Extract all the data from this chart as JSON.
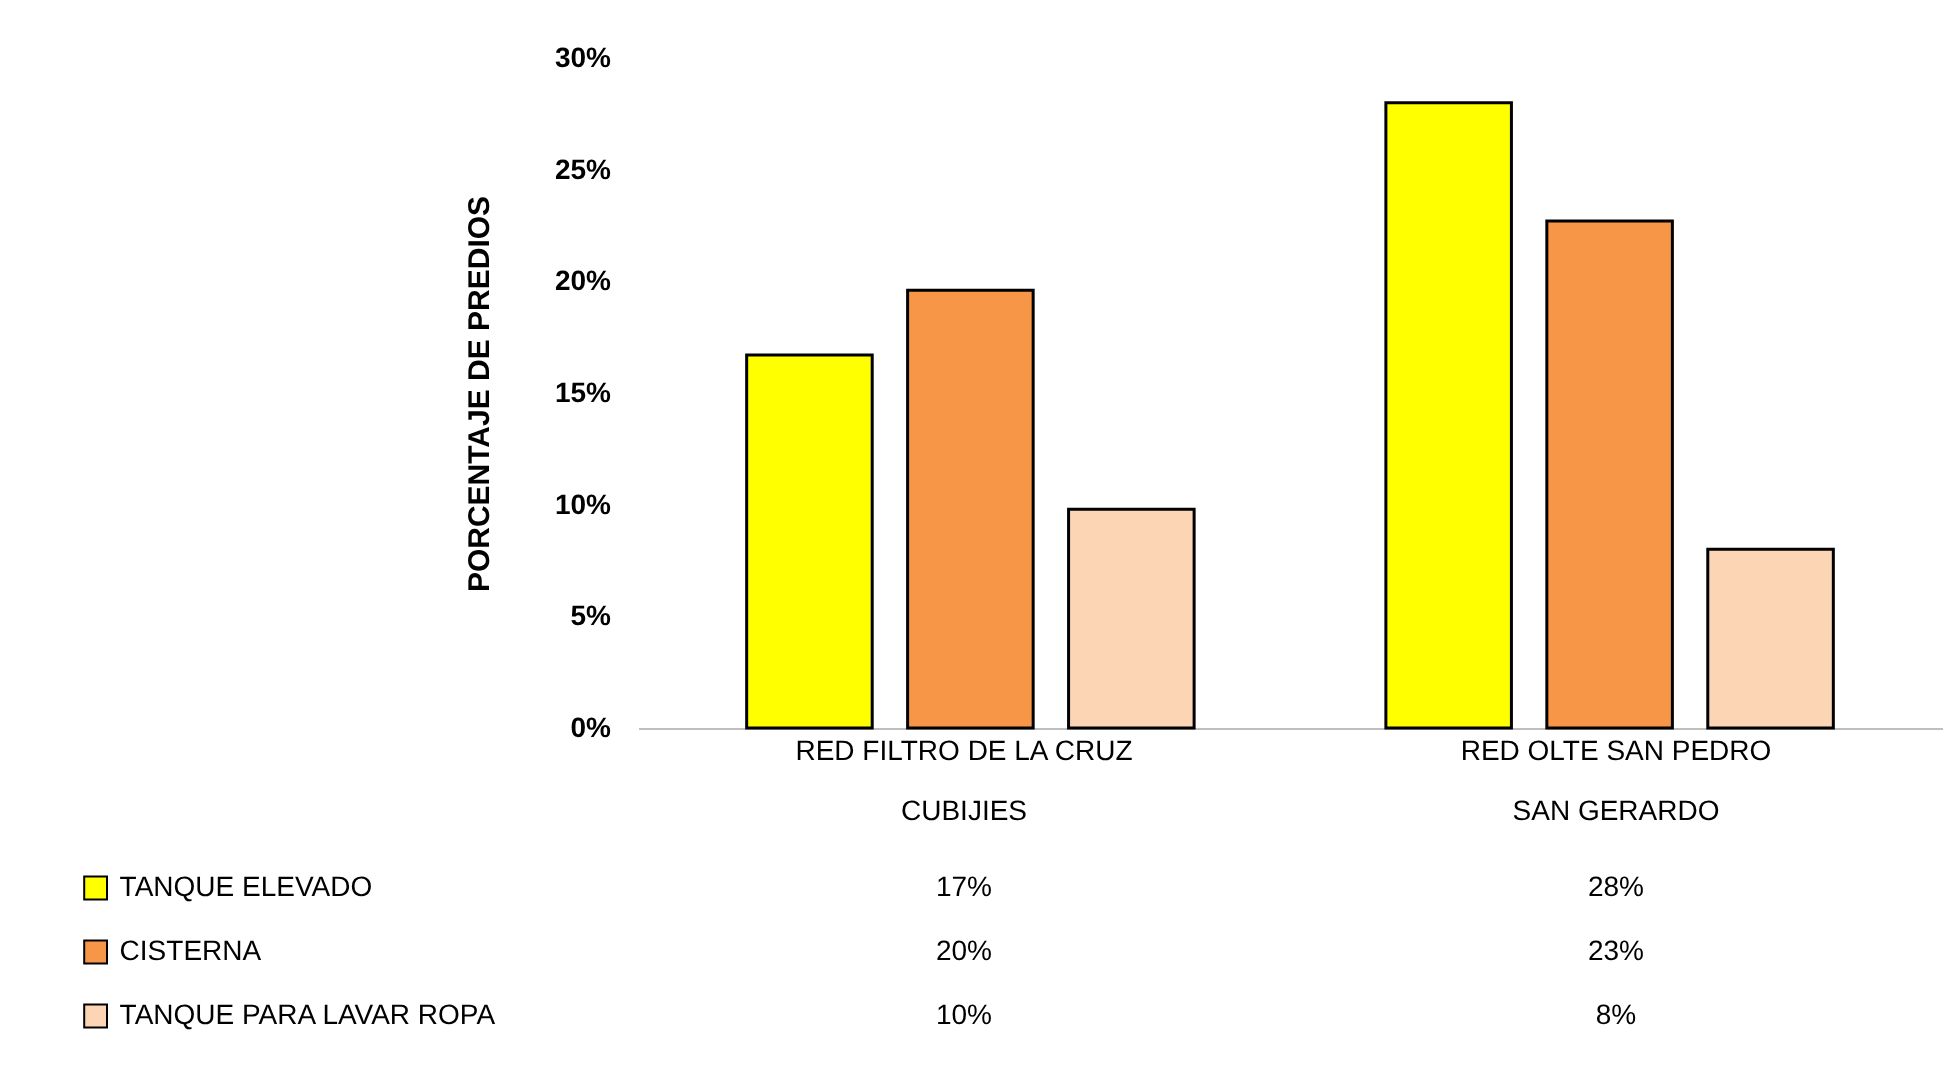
{
  "chart_data": {
    "type": "bar",
    "ylabel": "PORCENTAJE DE PREDIOS",
    "categories": [
      "RED FILTRO DE LA CRUZ CUBIJIES",
      "RED OLTE SAN PEDRO SAN GERARDO"
    ],
    "series": [
      {
        "name": "TANQUE ELEVADO",
        "color": "#ffff00",
        "values": [
          16.7,
          28.0
        ],
        "value_labels": [
          "17%",
          "28%"
        ]
      },
      {
        "name": "CISTERNA",
        "color": "#f79646",
        "values": [
          19.6,
          22.7
        ],
        "value_labels": [
          "20%",
          "23%"
        ]
      },
      {
        "name": "TANQUE PARA LAVAR ROPA",
        "color": "#fcd5b5",
        "values": [
          9.8,
          8.0
        ],
        "value_labels": [
          "10%",
          "8%"
        ]
      }
    ],
    "ylim": [
      0,
      30
    ],
    "yticks": [
      {
        "value": 0,
        "label": "0%"
      },
      {
        "value": 5,
        "label": "5%"
      },
      {
        "value": 10,
        "label": "10%"
      },
      {
        "value": 15,
        "label": "15%"
      },
      {
        "value": 20,
        "label": "20%"
      },
      {
        "value": 25,
        "label": "25%"
      },
      {
        "value": 30,
        "label": "30%"
      }
    ],
    "grid": false,
    "legend": "bottom left"
  }
}
